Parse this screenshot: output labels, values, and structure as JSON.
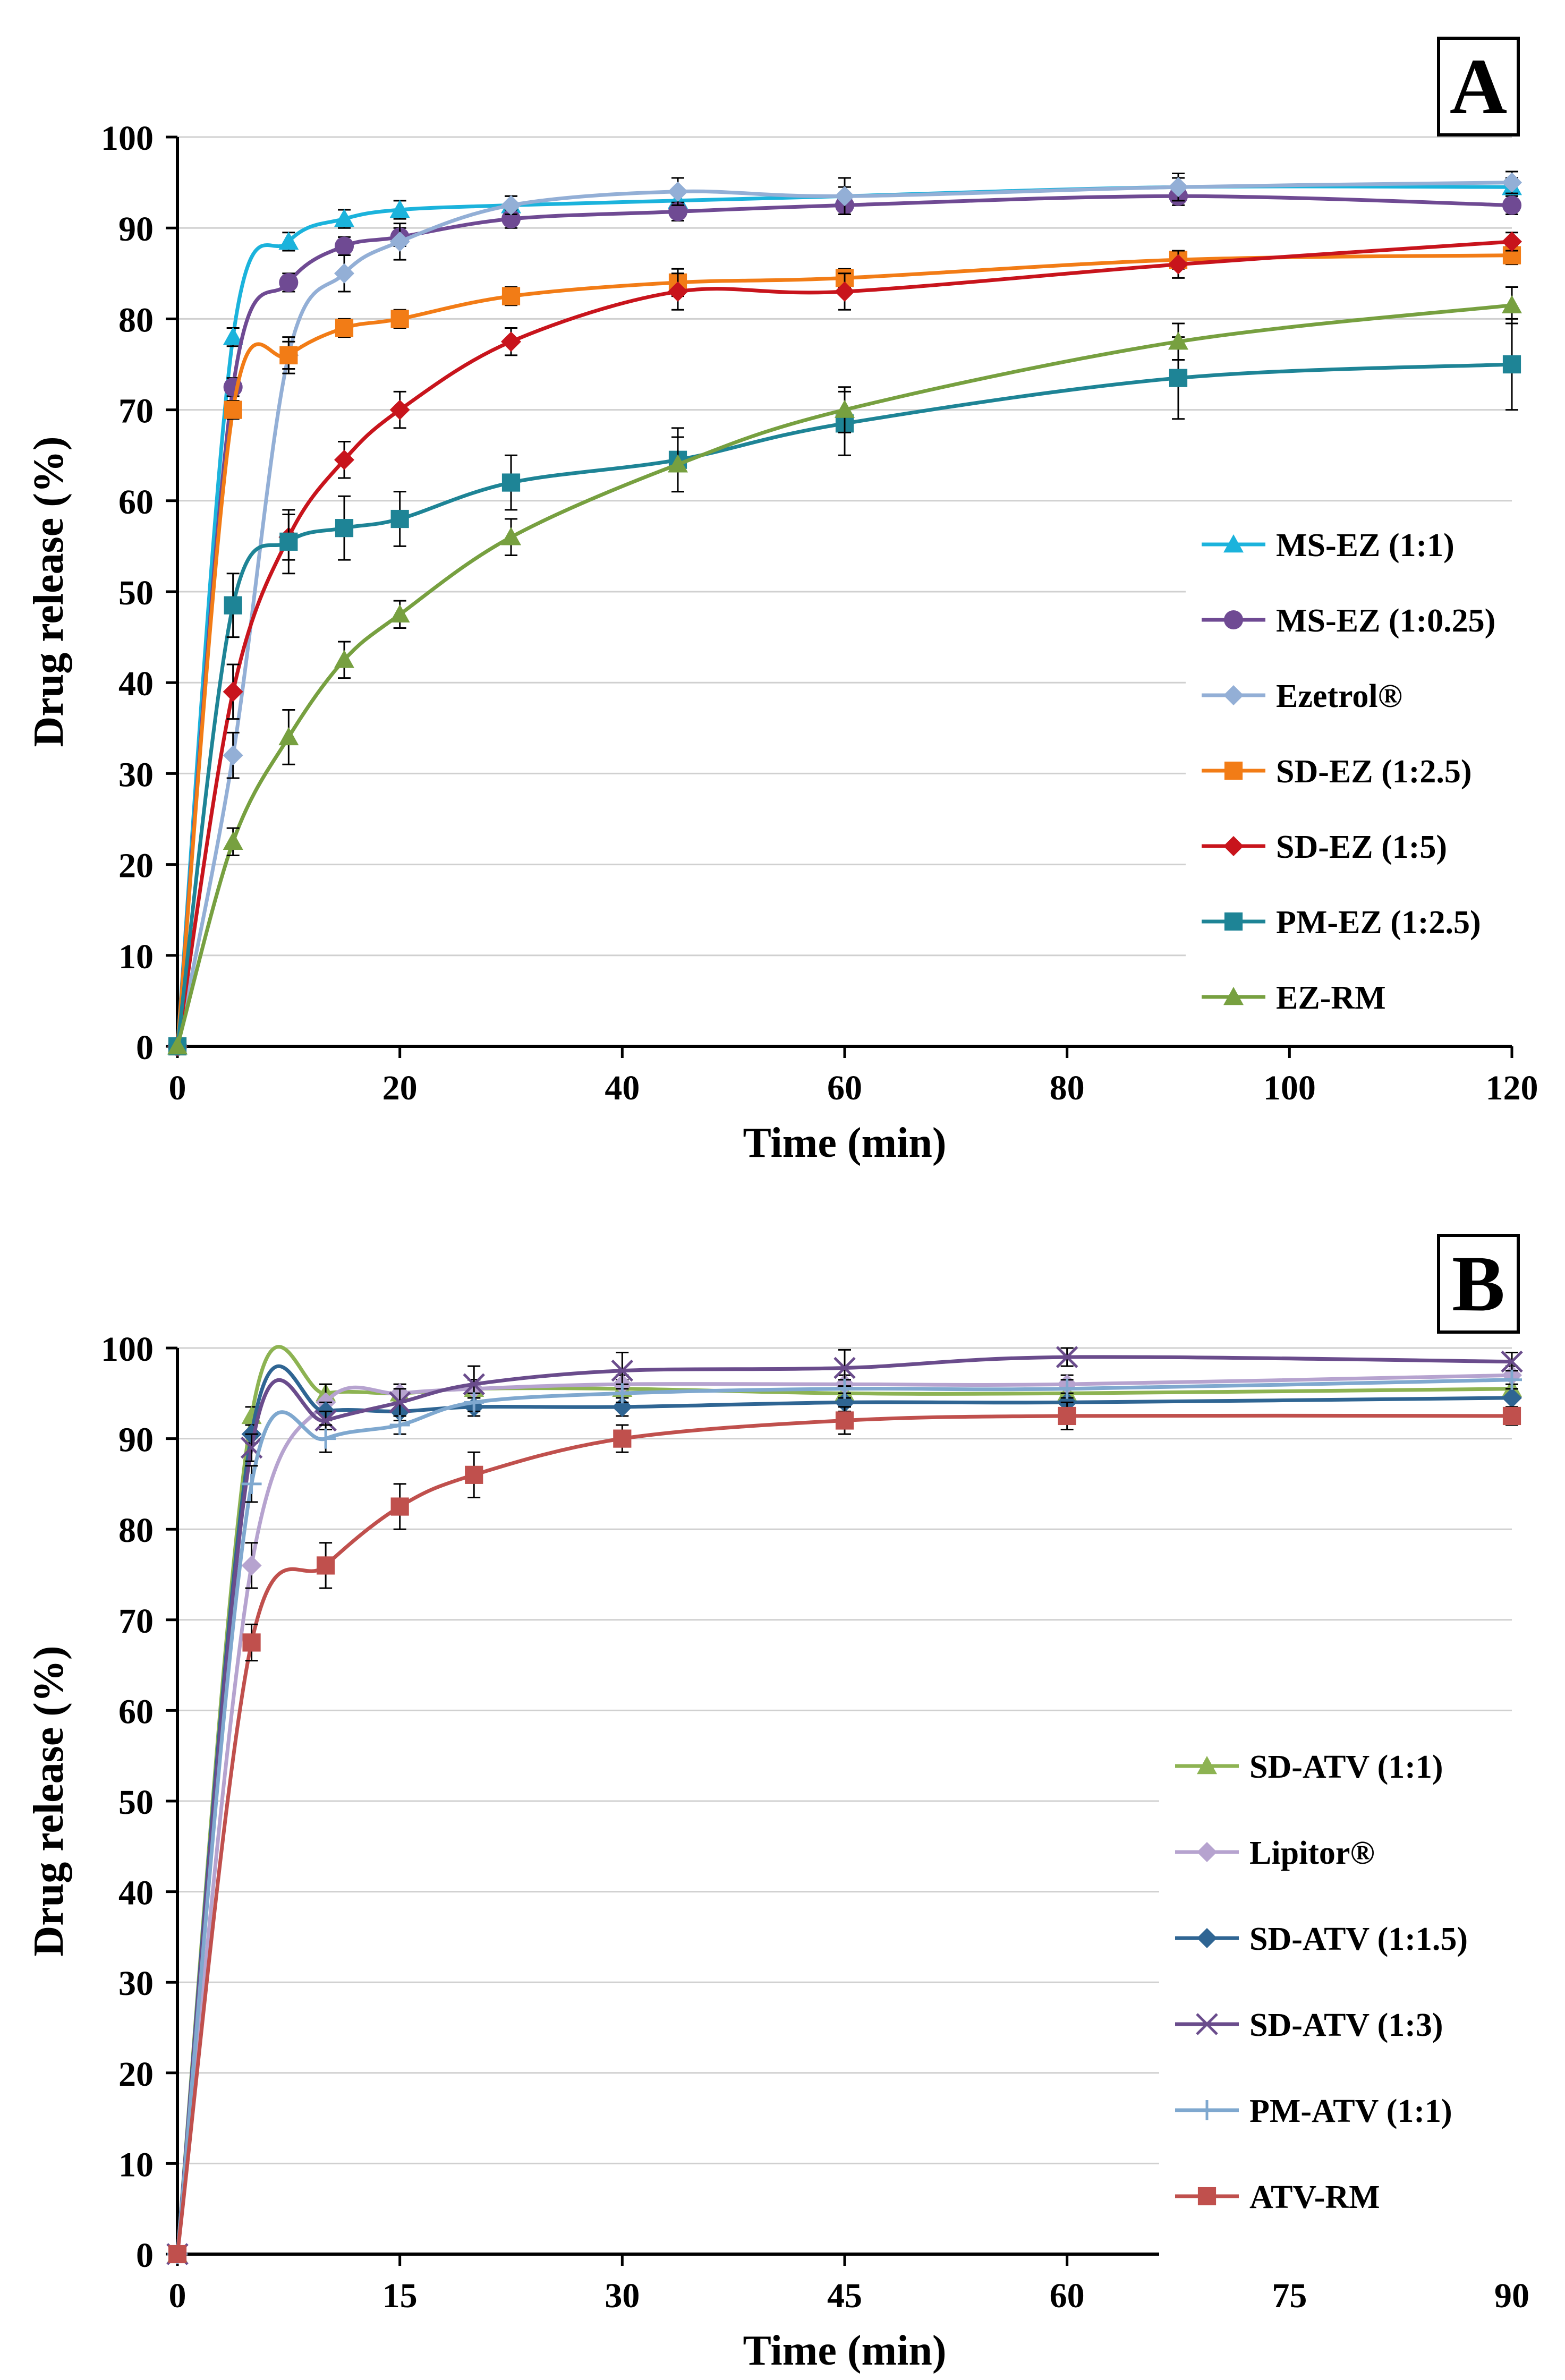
{
  "chart_data": [
    {
      "panel_label": "A",
      "type": "line",
      "xlabel": "Time (min)",
      "ylabel": "Drug release (%)",
      "xlim": [
        0,
        120
      ],
      "ylim": [
        0,
        100
      ],
      "x_ticks": [
        0,
        20,
        40,
        60,
        80,
        100,
        120
      ],
      "y_ticks": [
        0,
        10,
        20,
        30,
        40,
        50,
        60,
        70,
        80,
        90,
        100
      ],
      "x": [
        0,
        5,
        10,
        15,
        20,
        30,
        45,
        60,
        90,
        120
      ],
      "grid": "horizontal",
      "legend_position": "right",
      "series": [
        {
          "name": "MS-EZ (1:1)",
          "color": "#1BB3DC",
          "marker": "triangle",
          "values": [
            0,
            78,
            88.5,
            91,
            92,
            92.5,
            93,
            93.5,
            94.5,
            94.5
          ],
          "errors": [
            0,
            1,
            1,
            1,
            1,
            1,
            1,
            1,
            1,
            1
          ]
        },
        {
          "name": "MS-EZ (1:0.25)",
          "color": "#6F4A93",
          "marker": "circle",
          "values": [
            0,
            72.5,
            84,
            88,
            89,
            91,
            91.8,
            92.5,
            93.5,
            92.5
          ],
          "errors": [
            0,
            1,
            1,
            1,
            1,
            1,
            1,
            1,
            1,
            1
          ]
        },
        {
          "name": "Ezetrol®",
          "color": "#93AFD6",
          "marker": "diamond",
          "values": [
            0,
            32,
            76,
            85,
            88.5,
            92.5,
            94,
            93.5,
            94.5,
            95
          ],
          "errors": [
            0,
            2.5,
            2,
            2,
            2,
            1,
            1.5,
            2,
            1.5,
            1.2
          ]
        },
        {
          "name": "SD-EZ (1:2.5)",
          "color": "#F27C16",
          "marker": "square",
          "values": [
            0,
            70,
            76,
            79,
            80,
            82.5,
            84,
            84.5,
            86.5,
            87
          ],
          "errors": [
            0,
            1,
            1.5,
            1,
            1,
            1,
            1.5,
            1,
            1,
            1
          ]
        },
        {
          "name": "SD-EZ (1:5)",
          "color": "#C8141C",
          "marker": "diamond",
          "values": [
            0,
            39,
            56,
            64.5,
            70,
            77.5,
            83,
            83,
            86,
            88.5
          ],
          "errors": [
            0,
            3,
            2.5,
            2,
            2,
            1.5,
            2,
            2,
            1.5,
            1
          ]
        },
        {
          "name": "PM-EZ (1:2.5)",
          "color": "#1E8496",
          "marker": "square",
          "values": [
            0,
            48.5,
            55.5,
            57,
            58,
            62,
            64.5,
            68.5,
            73.5,
            75
          ],
          "errors": [
            0,
            3.5,
            3.5,
            3.5,
            3,
            3,
            3.5,
            3.5,
            4.5,
            5
          ]
        },
        {
          "name": "EZ-RM",
          "color": "#77A040",
          "marker": "triangle",
          "values": [
            0,
            22.5,
            34,
            42.5,
            47.5,
            56,
            64,
            70,
            77.5,
            81.5
          ],
          "errors": [
            0,
            1.5,
            3,
            2,
            1.5,
            2,
            3,
            2.5,
            2,
            2
          ]
        }
      ]
    },
    {
      "panel_label": "B",
      "type": "line",
      "xlabel": "Time (min)",
      "ylabel": "Drug release (%)",
      "xlim": [
        0,
        90
      ],
      "ylim": [
        0,
        100
      ],
      "x_ticks": [
        0,
        15,
        30,
        45,
        60,
        75,
        90
      ],
      "y_ticks": [
        0,
        10,
        20,
        30,
        40,
        50,
        60,
        70,
        80,
        90,
        100
      ],
      "x": [
        0,
        5,
        10,
        15,
        20,
        30,
        45,
        60,
        90
      ],
      "grid": "horizontal",
      "legend_position": "right",
      "series": [
        {
          "name": "SD-ATV (1:1)",
          "color": "#8DB352",
          "marker": "triangle",
          "values": [
            0,
            92.5,
            95,
            95,
            95.5,
            95.5,
            95,
            95,
            95.5
          ],
          "errors": [
            0,
            1,
            1,
            1,
            1,
            1,
            1,
            1,
            1
          ]
        },
        {
          "name": "Lipitor®",
          "color": "#B6A3CF",
          "marker": "diamond",
          "values": [
            0,
            76,
            94,
            95,
            95.5,
            96,
            96,
            96,
            97
          ],
          "errors": [
            0,
            2.5,
            2,
            1,
            1,
            1,
            1,
            1,
            1
          ]
        },
        {
          "name": "SD-ATV (1:1.5)",
          "color": "#2F6593",
          "marker": "diamond",
          "values": [
            0,
            90.5,
            93,
            93,
            93.5,
            93.5,
            94,
            94,
            94.5
          ],
          "errors": [
            0,
            1,
            1,
            1,
            1,
            1,
            1,
            1,
            1
          ]
        },
        {
          "name": "SD-ATV (1:3)",
          "color": "#6A4C8C",
          "marker": "x",
          "values": [
            0,
            89,
            92,
            94,
            96,
            97.5,
            97.8,
            99,
            98.5
          ],
          "errors": [
            0,
            1.5,
            1,
            1.5,
            2,
            2,
            2,
            1,
            1
          ]
        },
        {
          "name": "PM-ATV (1:1)",
          "color": "#7FA8CF",
          "marker": "plus",
          "values": [
            0,
            85,
            90,
            91.5,
            94,
            95,
            95.5,
            95.5,
            96.5
          ],
          "errors": [
            0,
            2,
            1.5,
            1,
            1,
            1,
            1,
            1,
            1
          ]
        },
        {
          "name": "ATV-RM",
          "color": "#C0504D",
          "marker": "square",
          "values": [
            0,
            67.5,
            76,
            82.5,
            86,
            90,
            92,
            92.5,
            92.5
          ],
          "errors": [
            0,
            2,
            2.5,
            2.5,
            2.5,
            1.5,
            1.5,
            1.5,
            1
          ]
        }
      ]
    }
  ]
}
